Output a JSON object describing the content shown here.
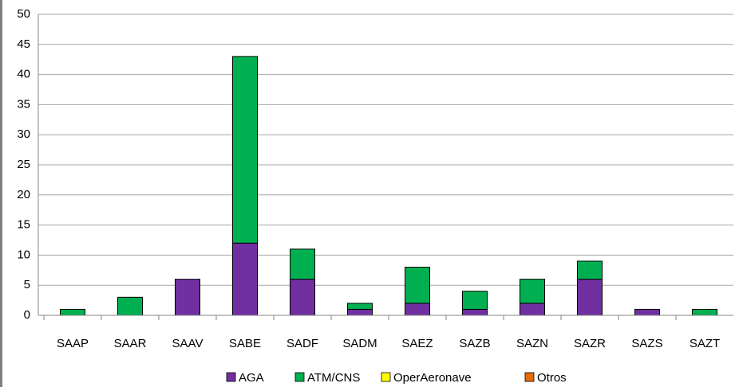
{
  "chart_data": {
    "type": "stacked_bar",
    "categories": [
      "SAAP",
      "SAAR",
      "SAAV",
      "SABE",
      "SADF",
      "SADM",
      "SAEZ",
      "SAZB",
      "SAZN",
      "SAZR",
      "SAZS",
      "SAZT"
    ],
    "series": [
      {
        "name": "AGA",
        "color": "#7030a0",
        "values": [
          0,
          0,
          6,
          12,
          6,
          1,
          2,
          1,
          2,
          6,
          1,
          0
        ]
      },
      {
        "name": "ATM/CNS",
        "color": "#00b050",
        "values": [
          1,
          3,
          0,
          31,
          5,
          1,
          6,
          3,
          4,
          3,
          0,
          1
        ]
      },
      {
        "name": "OperAeronave",
        "color": "#ffff00",
        "values": [
          0,
          0,
          0,
          0,
          0,
          0,
          0,
          0,
          0,
          0,
          0,
          0
        ]
      },
      {
        "name": "Otros",
        "color": "#e46c0a",
        "values": [
          0,
          0,
          0,
          0,
          0,
          0,
          0,
          0,
          0,
          0,
          0,
          0
        ]
      }
    ],
    "ylim": [
      0,
      50
    ],
    "yticks": [
      0,
      5,
      10,
      15,
      20,
      25,
      30,
      35,
      40,
      45,
      50
    ],
    "grid": true,
    "legend": "bottom"
  }
}
